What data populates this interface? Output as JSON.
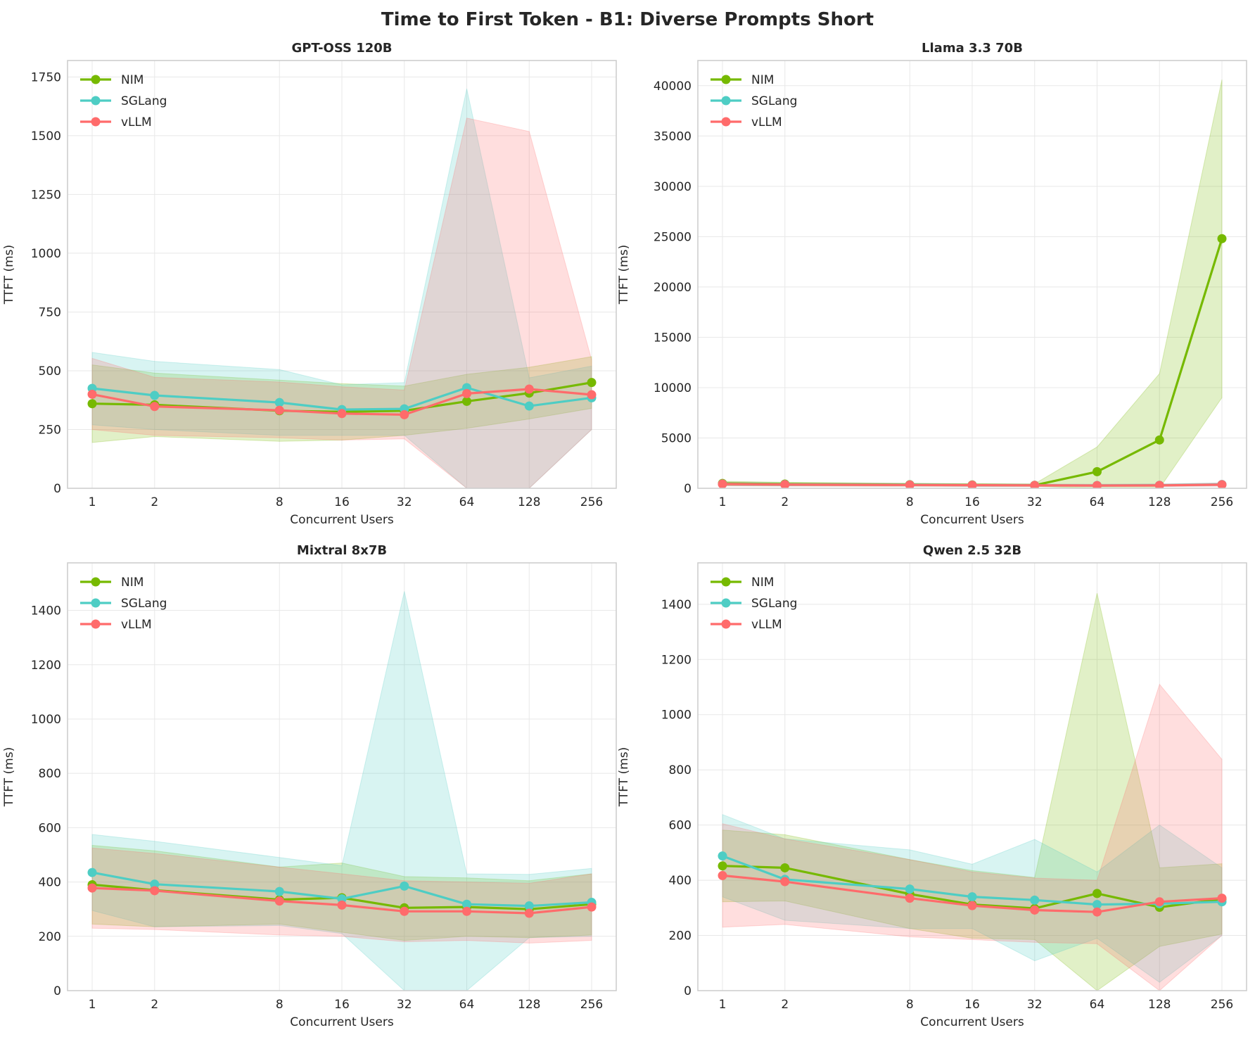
{
  "figure_title": "Time to First Token - B1: Diverse Prompts Short",
  "colors": {
    "NIM": "#76b900",
    "SGLang": "#4ecdc4",
    "vLLM": "#ff6b6b",
    "grid": "#e8e8e8",
    "axis": "#cccccc",
    "text": "#262626"
  },
  "chart_data": [
    {
      "type": "line",
      "title": "GPT-OSS 120B",
      "xlabel": "Concurrent Users",
      "ylabel": "TTFT (ms)",
      "x_scale": "log2",
      "x": [
        1,
        2,
        8,
        16,
        32,
        64,
        128,
        256
      ],
      "xticks": [
        "1",
        "2",
        "8",
        "16",
        "32",
        "64",
        "128",
        "256"
      ],
      "ylim": [
        0,
        1820
      ],
      "yticks": [
        0,
        250,
        500,
        750,
        1000,
        1250,
        1500,
        1750
      ],
      "legend_position": "upper-left",
      "grid": true,
      "series": [
        {
          "name": "NIM",
          "values": [
            360,
            355,
            330,
            325,
            330,
            370,
            405,
            450
          ],
          "lower": [
            195,
            220,
            200,
            205,
            225,
            255,
            295,
            340
          ],
          "upper": [
            525,
            490,
            460,
            445,
            435,
            485,
            515,
            560
          ]
        },
        {
          "name": "SGLang",
          "values": [
            425,
            395,
            365,
            335,
            338,
            428,
            350,
            385
          ],
          "lower": [
            270,
            250,
            225,
            225,
            225,
            0,
            0,
            250
          ],
          "upper": [
            578,
            540,
            505,
            440,
            450,
            1700,
            470,
            520
          ]
        },
        {
          "name": "vLLM",
          "values": [
            400,
            348,
            332,
            318,
            313,
            403,
            422,
            398
          ],
          "lower": [
            250,
            225,
            215,
            205,
            210,
            0,
            0,
            250
          ],
          "upper": [
            553,
            472,
            452,
            432,
            418,
            1575,
            1518,
            546
          ]
        }
      ]
    },
    {
      "type": "line",
      "title": "Llama 3.3 70B",
      "xlabel": "Concurrent Users",
      "ylabel": "TTFT (ms)",
      "x_scale": "log2",
      "x": [
        1,
        2,
        8,
        16,
        32,
        64,
        128,
        256
      ],
      "xticks": [
        "1",
        "2",
        "8",
        "16",
        "32",
        "64",
        "128",
        "256"
      ],
      "ylim": [
        0,
        42500
      ],
      "yticks": [
        0,
        5000,
        10000,
        15000,
        20000,
        25000,
        30000,
        35000,
        40000
      ],
      "legend_position": "upper-left",
      "grid": true,
      "series": [
        {
          "name": "NIM",
          "values": [
            480,
            420,
            360,
            330,
            300,
            1650,
            4800,
            24800
          ],
          "lower": [
            280,
            250,
            220,
            200,
            180,
            0,
            0,
            9000
          ],
          "upper": [
            700,
            600,
            500,
            460,
            450,
            4100,
            11400,
            40600
          ]
        },
        {
          "name": "SGLang",
          "values": [
            430,
            380,
            340,
            310,
            290,
            280,
            300,
            380
          ],
          "lower": [
            250,
            230,
            210,
            190,
            180,
            170,
            180,
            230
          ],
          "upper": [
            620,
            540,
            480,
            440,
            420,
            400,
            430,
            540
          ]
        },
        {
          "name": "vLLM",
          "values": [
            420,
            370,
            330,
            305,
            285,
            270,
            290,
            360
          ],
          "lower": [
            240,
            220,
            200,
            185,
            175,
            165,
            175,
            220
          ],
          "upper": [
            600,
            520,
            460,
            430,
            410,
            390,
            420,
            520
          ]
        }
      ]
    },
    {
      "type": "line",
      "title": "Mixtral 8x7B",
      "xlabel": "Concurrent Users",
      "ylabel": "TTFT (ms)",
      "x_scale": "log2",
      "x": [
        1,
        2,
        8,
        16,
        32,
        64,
        128,
        256
      ],
      "xticks": [
        "1",
        "2",
        "8",
        "16",
        "32",
        "64",
        "128",
        "256"
      ],
      "ylim": [
        0,
        1575
      ],
      "yticks": [
        0,
        200,
        400,
        600,
        800,
        1000,
        1200,
        1400
      ],
      "legend_position": "upper-left",
      "grid": true,
      "series": [
        {
          "name": "NIM",
          "values": [
            390,
            370,
            335,
            342,
            305,
            308,
            300,
            318
          ],
          "lower": [
            245,
            235,
            245,
            215,
            185,
            200,
            195,
            205
          ],
          "upper": [
            535,
            515,
            455,
            470,
            420,
            415,
            405,
            430
          ]
        },
        {
          "name": "SGLang",
          "values": [
            435,
            392,
            365,
            338,
            385,
            318,
            312,
            325
          ],
          "lower": [
            295,
            235,
            240,
            210,
            0,
            0,
            195,
            200
          ],
          "upper": [
            575,
            550,
            490,
            460,
            1470,
            430,
            428,
            450
          ]
        },
        {
          "name": "vLLM",
          "values": [
            378,
            368,
            330,
            315,
            292,
            292,
            285,
            308
          ],
          "lower": [
            230,
            225,
            205,
            200,
            180,
            185,
            175,
            185
          ],
          "upper": [
            525,
            505,
            455,
            430,
            405,
            400,
            395,
            430
          ]
        }
      ]
    },
    {
      "type": "line",
      "title": "Qwen 2.5 32B",
      "xlabel": "Concurrent Users",
      "ylabel": "TTFT (ms)",
      "x_scale": "log2",
      "x": [
        1,
        2,
        8,
        16,
        32,
        64,
        128,
        256
      ],
      "xticks": [
        "1",
        "2",
        "8",
        "16",
        "32",
        "64",
        "128",
        "256"
      ],
      "ylim": [
        0,
        1550
      ],
      "yticks": [
        0,
        200,
        400,
        600,
        800,
        1000,
        1200,
        1400
      ],
      "legend_position": "upper-left",
      "grid": true,
      "series": [
        {
          "name": "NIM",
          "values": [
            452,
            445,
            350,
            312,
            298,
            352,
            302,
            332
          ],
          "lower": [
            322,
            325,
            225,
            190,
            185,
            0,
            160,
            205
          ],
          "upper": [
            582,
            565,
            475,
            435,
            410,
            1440,
            445,
            460
          ]
        },
        {
          "name": "SGLang",
          "values": [
            488,
            403,
            368,
            340,
            328,
            312,
            315,
            322
          ],
          "lower": [
            340,
            255,
            225,
            225,
            108,
            190,
            30,
            200
          ],
          "upper": [
            638,
            550,
            510,
            458,
            548,
            430,
            600,
            445
          ]
        },
        {
          "name": "vLLM",
          "values": [
            417,
            395,
            335,
            308,
            292,
            285,
            322,
            335
          ],
          "lower": [
            230,
            240,
            195,
            185,
            175,
            170,
            0,
            200
          ],
          "upper": [
            605,
            550,
            475,
            430,
            408,
            400,
            1110,
            838
          ]
        }
      ]
    }
  ]
}
